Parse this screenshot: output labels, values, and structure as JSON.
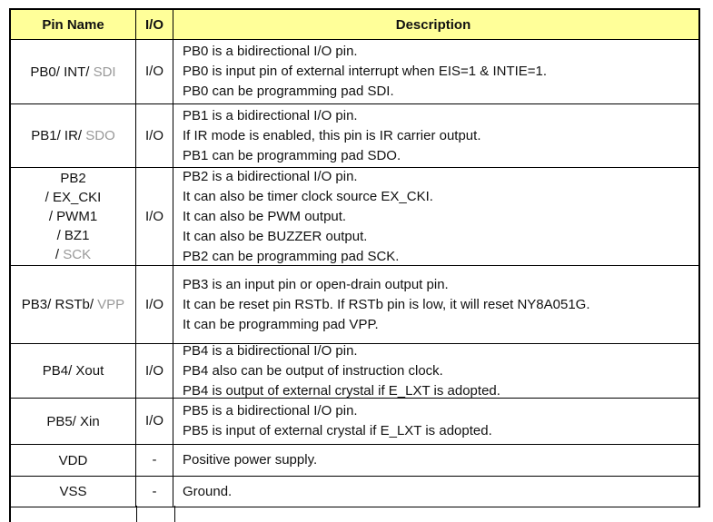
{
  "colors": {
    "header_bg": "#FFFF99",
    "border": "#000000",
    "text": "#111111",
    "muted_text": "#999999"
  },
  "header": {
    "columns": [
      {
        "label": "Pin Name"
      },
      {
        "label": "I/O"
      },
      {
        "label": "Description"
      }
    ]
  },
  "rows": [
    {
      "pin_lines": [
        [
          {
            "text": "PB0/ INT/ ",
            "muted": false
          },
          {
            "text": "SDI",
            "muted": true
          }
        ]
      ],
      "io": "I/O",
      "desc_lines": [
        "PB0 is a bidirectional I/O pin.",
        "PB0 is input pin of external interrupt when EIS=1 & INTIE=1.",
        "PB0 can be programming pad SDI."
      ]
    },
    {
      "pin_lines": [
        [
          {
            "text": "PB1/ IR/ ",
            "muted": false
          },
          {
            "text": "SDO",
            "muted": true
          }
        ]
      ],
      "io": "I/O",
      "desc_lines": [
        "PB1 is a bidirectional I/O pin.",
        "If IR mode is enabled, this pin is IR carrier output.",
        "PB1 can be programming pad SDO."
      ]
    },
    {
      "pin_lines": [
        [
          {
            "text": "PB2",
            "muted": false
          }
        ],
        [
          {
            "text": "/ EX_CKI",
            "muted": false
          }
        ],
        [
          {
            "text": "/ PWM1",
            "muted": false
          }
        ],
        [
          {
            "text": "/ BZ1",
            "muted": false
          }
        ],
        [
          {
            "text": "/ ",
            "muted": false
          },
          {
            "text": "SCK",
            "muted": true
          }
        ]
      ],
      "io": "I/O",
      "desc_lines": [
        "PB2 is a bidirectional I/O pin.",
        "It can also be timer clock source EX_CKI.",
        "It can also be PWM output.",
        "It can also be BUZZER output.",
        "PB2 can be programming pad SCK."
      ]
    },
    {
      "pin_lines": [
        [
          {
            "text": "PB3/ RSTb/ ",
            "muted": false
          },
          {
            "text": "VPP",
            "muted": true
          }
        ]
      ],
      "io": "I/O",
      "desc_lines": [
        "PB3 is an input pin or open-drain output pin.",
        "It can be reset pin RSTb. If RSTb pin is low, it will reset NY8A051G.",
        "It can be programming pad VPP."
      ]
    },
    {
      "pin_lines": [
        [
          {
            "text": "PB4/ Xout",
            "muted": false
          }
        ]
      ],
      "io": "I/O",
      "desc_lines": [
        "PB4 is a bidirectional I/O pin.",
        "PB4 also can be output of instruction clock.",
        "PB4 is output of external crystal if E_LXT is adopted."
      ]
    },
    {
      "pin_lines": [
        [
          {
            "text": "PB5/ Xin",
            "muted": false
          }
        ]
      ],
      "io": "I/O",
      "desc_lines": [
        "PB5 is a bidirectional I/O pin.",
        "PB5 is input of external crystal if E_LXT is adopted."
      ]
    },
    {
      "pin_lines": [
        [
          {
            "text": "VDD",
            "muted": false
          }
        ]
      ],
      "io": "-",
      "desc_lines": [
        "Positive power supply."
      ]
    },
    {
      "pin_lines": [
        [
          {
            "text": "VSS",
            "muted": false
          }
        ]
      ],
      "io": "-",
      "desc_lines": [
        "Ground."
      ]
    }
  ]
}
